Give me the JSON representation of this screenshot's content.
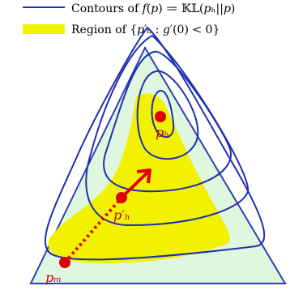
{
  "legend": {
    "items": [
      {
        "label": "Contours of 𝑓(𝑝) ≔ 𝕂𝕃(𝑝ₕ||𝑝)",
        "swatch": "line",
        "color": "#1f2fb0"
      },
      {
        "label": "Region of {𝑝′ₕ : 𝑔′(0) < 0}",
        "swatch": "fill",
        "color": "#f2f200"
      }
    ]
  },
  "points": {
    "ph": {
      "label": "𝑝ₕ"
    },
    "ph_prime": {
      "label": "𝑝′ₕ"
    },
    "pm": {
      "label": "𝑝ₘ"
    }
  },
  "colors": {
    "simplex_fill": "#dff7df",
    "simplex_stroke": "#2c3fb6",
    "contour": "#1f2fb0",
    "region": "#f2f200",
    "point": "#e00000",
    "arrow": "#e00000"
  }
}
